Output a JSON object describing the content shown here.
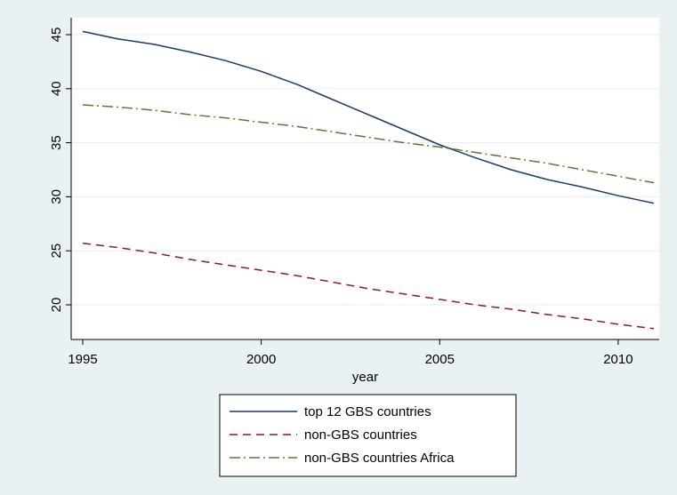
{
  "chart_data": {
    "type": "line",
    "xlabel": "year",
    "ylabel": "",
    "xlim": [
      1995,
      2011
    ],
    "ylim": [
      17.5,
      46.2
    ],
    "x_ticks": [
      1995,
      2000,
      2005,
      2010
    ],
    "y_ticks": [
      20,
      25,
      30,
      35,
      40,
      45
    ],
    "grid": "horizontal",
    "legend_position": "bottom",
    "x": [
      1995,
      1996,
      1997,
      1998,
      1999,
      2000,
      2001,
      2002,
      2003,
      2004,
      2005,
      2006,
      2007,
      2008,
      2009,
      2010,
      2011
    ],
    "series": [
      {
        "name": "top 12 GBS countries",
        "color": "#1a3a6b",
        "dash": "solid",
        "values": [
          45.3,
          44.6,
          44.1,
          43.4,
          42.6,
          41.6,
          40.4,
          39.0,
          37.6,
          36.2,
          34.8,
          33.6,
          32.5,
          31.6,
          30.9,
          30.1,
          29.4
        ]
      },
      {
        "name": "non-GBS countries",
        "color": "#8b1c1c",
        "dash": "long-dash",
        "values": [
          25.7,
          25.3,
          24.8,
          24.2,
          23.7,
          23.2,
          22.7,
          22.1,
          21.5,
          21.0,
          20.5,
          20.0,
          19.6,
          19.1,
          18.7,
          18.2,
          17.8
        ]
      },
      {
        "name": "non-GBS countries  Africa",
        "color": "#5a7a33",
        "dash": "dash-dot",
        "values": [
          38.5,
          38.3,
          38.0,
          37.6,
          37.3,
          36.9,
          36.5,
          36.0,
          35.5,
          35.0,
          34.6,
          34.1,
          33.6,
          33.1,
          32.5,
          31.9,
          31.3
        ]
      }
    ]
  }
}
